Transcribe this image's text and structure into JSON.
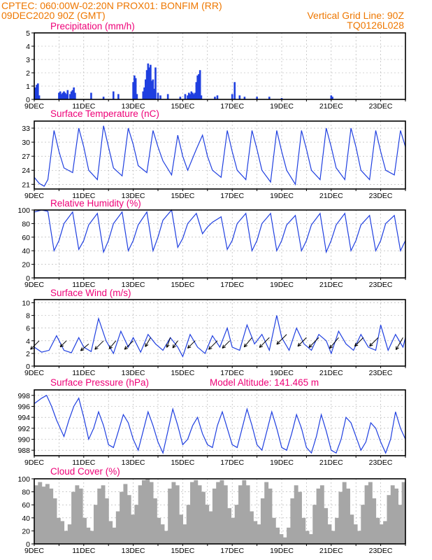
{
  "header": {
    "line1": "CPTEC:   060:00W-02:20N   PROX01: BONFIM (RR)",
    "line2_left": "09DEC2020 90Z (GMT)",
    "line2_right": "Vertical Grid Line: 90Z",
    "line3_right": "TQ0126L028"
  },
  "colors": {
    "header": "#ee7700",
    "title": "#ee0077",
    "series": "#1f3fe0",
    "cloud": "#a6a6a6",
    "wind_arrow": "#000000",
    "grid": "#aaaaaa"
  },
  "xaxis_labels": [
    "9DEC",
    "11DEC",
    "13DEC",
    "15DEC",
    "17DEC",
    "19DEC",
    "21DEC",
    "23DEC"
  ],
  "model_altitude": "Model Altitude: 141.465 m",
  "chart_data": [
    {
      "type": "bar",
      "title": "Precipitation (mm/h)",
      "ylim": [
        0,
        5
      ],
      "yticks": [
        0,
        1,
        2,
        3,
        4,
        5
      ],
      "xlim_days": [
        9,
        24
      ],
      "grid": true,
      "x_days": [
        9.05,
        9.1,
        9.15,
        9.2,
        10.0,
        10.05,
        10.1,
        10.15,
        10.2,
        10.25,
        10.3,
        10.35,
        10.45,
        10.5,
        10.55,
        10.6,
        10.65,
        11.3,
        11.8,
        12.2,
        12.4,
        13.0,
        13.05,
        13.1,
        13.15,
        13.4,
        13.45,
        13.5,
        13.55,
        13.6,
        13.65,
        13.7,
        13.75,
        13.8,
        13.85,
        13.9,
        14.0,
        14.1,
        14.4,
        14.9,
        15.1,
        15.2,
        15.25,
        15.3,
        15.35,
        15.4,
        15.45,
        15.5,
        15.55,
        15.6,
        15.65,
        15.7,
        15.75,
        16.3,
        16.4,
        17.0,
        17.1,
        17.3,
        17.5,
        18.0,
        18.5,
        19.0,
        21.0,
        21.05
      ],
      "values": [
        0.9,
        1.1,
        1.2,
        0.3,
        0.5,
        0.6,
        0.4,
        0.5,
        0.6,
        0.5,
        0.4,
        0.7,
        0.4,
        0.6,
        0.7,
        0.9,
        0.5,
        0.5,
        0.2,
        0.6,
        0.4,
        1.3,
        1.8,
        1.6,
        0.4,
        0.6,
        0.9,
        1.5,
        2.2,
        2.7,
        2.4,
        2.6,
        1.4,
        1.5,
        0.8,
        2.4,
        0.5,
        0.3,
        0.4,
        0.2,
        0.4,
        0.3,
        0.5,
        0.4,
        0.6,
        0.5,
        0.4,
        0.5,
        1.3,
        1.8,
        1.9,
        2.2,
        0.3,
        0.2,
        0.3,
        0.4,
        1.3,
        0.3,
        0.2,
        0.2,
        0.2,
        0.1,
        0.3,
        0.2
      ]
    },
    {
      "type": "line",
      "title": "Surface Temperature (nC)",
      "ylim": [
        20,
        34.5
      ],
      "yticks": [
        21,
        24,
        27,
        30,
        33
      ],
      "xlim_days": [
        9,
        24
      ],
      "grid": true,
      "x_days": [
        9.0,
        9.2,
        9.4,
        9.55,
        9.8,
        10.0,
        10.2,
        10.55,
        10.8,
        11.0,
        11.2,
        11.55,
        11.8,
        12.0,
        12.2,
        12.55,
        12.8,
        13.0,
        13.2,
        13.55,
        13.8,
        14.0,
        14.2,
        14.55,
        14.8,
        15.0,
        15.2,
        15.55,
        15.8,
        16.0,
        16.2,
        16.55,
        16.8,
        17.0,
        17.2,
        17.55,
        17.8,
        18.0,
        18.2,
        18.55,
        18.8,
        19.0,
        19.2,
        19.55,
        19.8,
        20.0,
        20.2,
        20.55,
        20.8,
        21.0,
        21.2,
        21.55,
        21.8,
        22.0,
        22.2,
        22.55,
        22.8,
        23.0,
        23.2,
        23.55,
        23.8,
        24.0
      ],
      "values": [
        22.5,
        21.2,
        20.6,
        22.0,
        32.5,
        28.0,
        24.5,
        23.5,
        33.0,
        29.0,
        24.0,
        22.0,
        33.5,
        29.0,
        24.5,
        22.8,
        33.0,
        29.5,
        25.0,
        23.5,
        32.5,
        29.0,
        26.0,
        23.0,
        31.5,
        27.0,
        24.0,
        28.5,
        31.5,
        27.0,
        24.0,
        22.5,
        32.5,
        28.0,
        24.0,
        22.0,
        32.5,
        28.5,
        24.0,
        21.5,
        32.5,
        28.0,
        24.0,
        21.0,
        32.5,
        28.5,
        24.0,
        22.0,
        33.0,
        29.0,
        24.5,
        22.0,
        33.0,
        29.0,
        24.0,
        22.0,
        32.5,
        28.0,
        24.0,
        23.0,
        32.5,
        29.0
      ]
    },
    {
      "type": "line",
      "title": "Relative Humidity (%)",
      "ylim": [
        0,
        100
      ],
      "yticks": [
        0,
        20,
        40,
        60,
        80,
        100
      ],
      "xlim_days": [
        9,
        24
      ],
      "grid": true,
      "x_days": [
        9.0,
        9.3,
        9.55,
        9.8,
        10.0,
        10.2,
        10.55,
        10.8,
        11.0,
        11.2,
        11.55,
        11.8,
        12.0,
        12.2,
        12.55,
        12.8,
        13.0,
        13.2,
        13.55,
        13.8,
        14.0,
        14.2,
        14.55,
        14.8,
        15.0,
        15.2,
        15.55,
        15.8,
        16.0,
        16.2,
        16.55,
        16.8,
        17.0,
        17.2,
        17.55,
        17.8,
        18.0,
        18.2,
        18.55,
        18.8,
        19.0,
        19.2,
        19.55,
        19.8,
        20.0,
        20.2,
        20.55,
        20.8,
        21.0,
        21.2,
        21.55,
        21.8,
        22.0,
        22.2,
        22.55,
        22.8,
        23.0,
        23.2,
        23.55,
        23.8,
        24.0
      ],
      "values": [
        97,
        100,
        98,
        40,
        55,
        80,
        97,
        42,
        55,
        78,
        95,
        38,
        55,
        80,
        97,
        40,
        55,
        78,
        97,
        40,
        60,
        85,
        100,
        45,
        58,
        80,
        95,
        65,
        75,
        82,
        90,
        42,
        55,
        80,
        95,
        40,
        55,
        80,
        95,
        40,
        55,
        78,
        92,
        40,
        55,
        78,
        95,
        38,
        55,
        78,
        95,
        40,
        55,
        78,
        92,
        40,
        55,
        80,
        92,
        40,
        55
      ]
    },
    {
      "type": "line",
      "title": "Surface Wind (m/s)",
      "ylim": [
        0,
        10.5
      ],
      "yticks": [
        0,
        2,
        4,
        6,
        8,
        10
      ],
      "xlim_days": [
        9,
        24
      ],
      "grid": true,
      "x_days": [
        9.0,
        9.3,
        9.6,
        9.9,
        10.2,
        10.5,
        10.8,
        11.0,
        11.3,
        11.6,
        11.9,
        12.2,
        12.5,
        12.8,
        13.0,
        13.3,
        13.6,
        13.9,
        14.2,
        14.5,
        14.8,
        15.0,
        15.3,
        15.6,
        15.9,
        16.2,
        16.5,
        16.8,
        17.0,
        17.3,
        17.6,
        17.9,
        18.2,
        18.5,
        18.8,
        19.0,
        19.3,
        19.6,
        19.9,
        20.2,
        20.5,
        20.8,
        21.0,
        21.3,
        21.6,
        21.9,
        22.2,
        22.5,
        22.8,
        23.0,
        23.3,
        23.6,
        23.9,
        24.0
      ],
      "values": [
        3.0,
        2.2,
        2.5,
        4.8,
        2.5,
        2.1,
        4.5,
        3.0,
        2.3,
        7.5,
        4.0,
        2.0,
        5.5,
        3.0,
        4.5,
        2.2,
        5.0,
        3.5,
        2.5,
        4.5,
        3.0,
        1.5,
        5.0,
        3.0,
        2.0,
        4.8,
        3.0,
        6.0,
        3.0,
        2.5,
        6.5,
        3.5,
        5.0,
        2.5,
        8.0,
        4.5,
        2.5,
        6.0,
        3.5,
        2.5,
        5.0,
        4.0,
        2.0,
        5.5,
        3.5,
        2.5,
        5.0,
        3.0,
        2.5,
        6.5,
        2.5,
        5.0,
        3.0,
        4.5
      ],
      "arrows": [
        {
          "day": 9.2,
          "value": 4.0,
          "dir_deg": 225,
          "speed": 3.5
        },
        {
          "day": 10.3,
          "value": 4.0,
          "dir_deg": 225,
          "speed": 2.5
        },
        {
          "day": 11.2,
          "value": 3.5,
          "dir_deg": 230,
          "speed": 3.0
        },
        {
          "day": 11.8,
          "value": 4.0,
          "dir_deg": 225,
          "speed": 3.5
        },
        {
          "day": 12.3,
          "value": 4.0,
          "dir_deg": 220,
          "speed": 3.0
        },
        {
          "day": 13.0,
          "value": 4.0,
          "dir_deg": 225,
          "speed": 3.5
        },
        {
          "day": 13.7,
          "value": 4.5,
          "dir_deg": 210,
          "speed": 3.0
        },
        {
          "day": 14.5,
          "value": 4.5,
          "dir_deg": 200,
          "speed": 3.0
        },
        {
          "day": 14.8,
          "value": 4.0,
          "dir_deg": 215,
          "speed": 2.5
        },
        {
          "day": 15.5,
          "value": 4.0,
          "dir_deg": 225,
          "speed": 3.0
        },
        {
          "day": 16.4,
          "value": 4.0,
          "dir_deg": 225,
          "speed": 3.5
        },
        {
          "day": 16.9,
          "value": 4.0,
          "dir_deg": 225,
          "speed": 3.0
        },
        {
          "day": 17.8,
          "value": 4.5,
          "dir_deg": 220,
          "speed": 3.5
        },
        {
          "day": 18.5,
          "value": 4.5,
          "dir_deg": 225,
          "speed": 4.0
        },
        {
          "day": 19.2,
          "value": 5.0,
          "dir_deg": 225,
          "speed": 4.0
        },
        {
          "day": 20.0,
          "value": 4.5,
          "dir_deg": 225,
          "speed": 3.5
        },
        {
          "day": 20.5,
          "value": 4.5,
          "dir_deg": 225,
          "speed": 4.0
        },
        {
          "day": 21.3,
          "value": 4.5,
          "dir_deg": 220,
          "speed": 4.0
        },
        {
          "day": 22.3,
          "value": 4.5,
          "dir_deg": 225,
          "speed": 3.5
        },
        {
          "day": 22.9,
          "value": 4.5,
          "dir_deg": 225,
          "speed": 3.5
        },
        {
          "day": 23.9,
          "value": 4.5,
          "dir_deg": 210,
          "speed": 4.0
        }
      ]
    },
    {
      "type": "line",
      "title": "Surface Pressure (hPa)",
      "ylim": [
        987,
        999
      ],
      "yticks": [
        988,
        990,
        992,
        994,
        996,
        998
      ],
      "xlim_days": [
        9,
        24
      ],
      "grid": true,
      "x_days": [
        9.0,
        9.3,
        9.5,
        9.7,
        9.9,
        10.2,
        10.4,
        10.6,
        10.8,
        11.0,
        11.2,
        11.4,
        11.6,
        11.8,
        12.0,
        12.2,
        12.4,
        12.6,
        12.8,
        13.0,
        13.2,
        13.4,
        13.6,
        13.8,
        14.0,
        14.2,
        14.4,
        14.6,
        14.8,
        15.0,
        15.2,
        15.4,
        15.6,
        15.8,
        16.0,
        16.2,
        16.4,
        16.6,
        16.8,
        17.0,
        17.2,
        17.4,
        17.6,
        17.8,
        18.0,
        18.2,
        18.4,
        18.6,
        18.8,
        19.0,
        19.2,
        19.4,
        19.6,
        19.8,
        20.0,
        20.2,
        20.4,
        20.6,
        20.8,
        21.0,
        21.2,
        21.4,
        21.6,
        21.8,
        22.0,
        22.2,
        22.4,
        22.6,
        22.8,
        23.0,
        23.2,
        23.4,
        23.6,
        23.8,
        24.0
      ],
      "values": [
        996.5,
        997.5,
        998.0,
        996.0,
        993.5,
        990.5,
        993.5,
        996.0,
        997.5,
        994.0,
        990.0,
        992.0,
        995.0,
        992.5,
        989.0,
        988.5,
        991.5,
        994.5,
        993.0,
        990.0,
        988.0,
        991.5,
        995.0,
        992.5,
        989.5,
        987.5,
        991.5,
        995.5,
        992.5,
        989.0,
        990.0,
        992.5,
        994.0,
        991.0,
        989.0,
        988.5,
        992.5,
        995.0,
        992.0,
        989.0,
        988.5,
        992.0,
        995.5,
        992.5,
        989.0,
        988.0,
        991.5,
        995.0,
        992.0,
        988.5,
        988.0,
        991.0,
        994.5,
        992.0,
        988.5,
        987.5,
        990.5,
        994.5,
        991.5,
        988.0,
        987.5,
        990.0,
        994.0,
        993.0,
        990.5,
        988.0,
        989.5,
        993.0,
        992.0,
        989.5,
        987.5,
        990.0,
        995.0,
        992.0,
        990.0
      ]
    },
    {
      "type": "bar",
      "title": "Cloud Cover (%)",
      "ylim": [
        0,
        100
      ],
      "yticks": [
        0,
        20,
        40,
        60,
        80,
        100
      ],
      "xlim_days": [
        9,
        24
      ],
      "grid": true,
      "x_days": [
        9.0,
        9.15,
        9.3,
        9.45,
        9.6,
        9.75,
        9.9,
        10.05,
        10.2,
        10.35,
        10.5,
        10.65,
        10.8,
        10.95,
        11.1,
        11.25,
        11.4,
        11.55,
        11.7,
        11.85,
        12.0,
        12.15,
        12.3,
        12.45,
        12.6,
        12.75,
        12.9,
        13.05,
        13.2,
        13.35,
        13.5,
        13.65,
        13.8,
        13.95,
        14.1,
        14.25,
        14.4,
        14.55,
        14.7,
        14.85,
        15.0,
        15.15,
        15.3,
        15.45,
        15.6,
        15.75,
        15.9,
        16.05,
        16.2,
        16.35,
        16.5,
        16.65,
        16.8,
        16.95,
        17.1,
        17.25,
        17.4,
        17.55,
        17.7,
        17.85,
        18.0,
        18.15,
        18.3,
        18.45,
        18.6,
        18.75,
        18.9,
        19.05,
        19.2,
        19.35,
        19.5,
        19.65,
        19.8,
        19.95,
        20.1,
        20.25,
        20.4,
        20.55,
        20.7,
        20.85,
        21.0,
        21.15,
        21.3,
        21.45,
        21.6,
        21.75,
        21.9,
        22.05,
        22.2,
        22.35,
        22.5,
        22.65,
        22.8,
        22.95,
        23.1,
        23.25,
        23.4,
        23.55,
        23.7,
        23.85
      ],
      "values": [
        90,
        95,
        88,
        92,
        85,
        70,
        40,
        35,
        20,
        30,
        80,
        90,
        85,
        40,
        25,
        20,
        60,
        85,
        90,
        70,
        35,
        25,
        50,
        80,
        92,
        75,
        45,
        60,
        90,
        98,
        100,
        95,
        70,
        40,
        30,
        20,
        85,
        95,
        90,
        45,
        30,
        60,
        95,
        98,
        90,
        80,
        60,
        50,
        85,
        95,
        98,
        90,
        55,
        40,
        60,
        90,
        98,
        90,
        50,
        35,
        30,
        70,
        95,
        85,
        40,
        25,
        15,
        10,
        25,
        70,
        90,
        80,
        40,
        20,
        15,
        60,
        85,
        90,
        55,
        30,
        20,
        40,
        80,
        95,
        85,
        45,
        30,
        20,
        60,
        90,
        95,
        70,
        40,
        30,
        35,
        75,
        90,
        85,
        60,
        95
      ]
    }
  ]
}
